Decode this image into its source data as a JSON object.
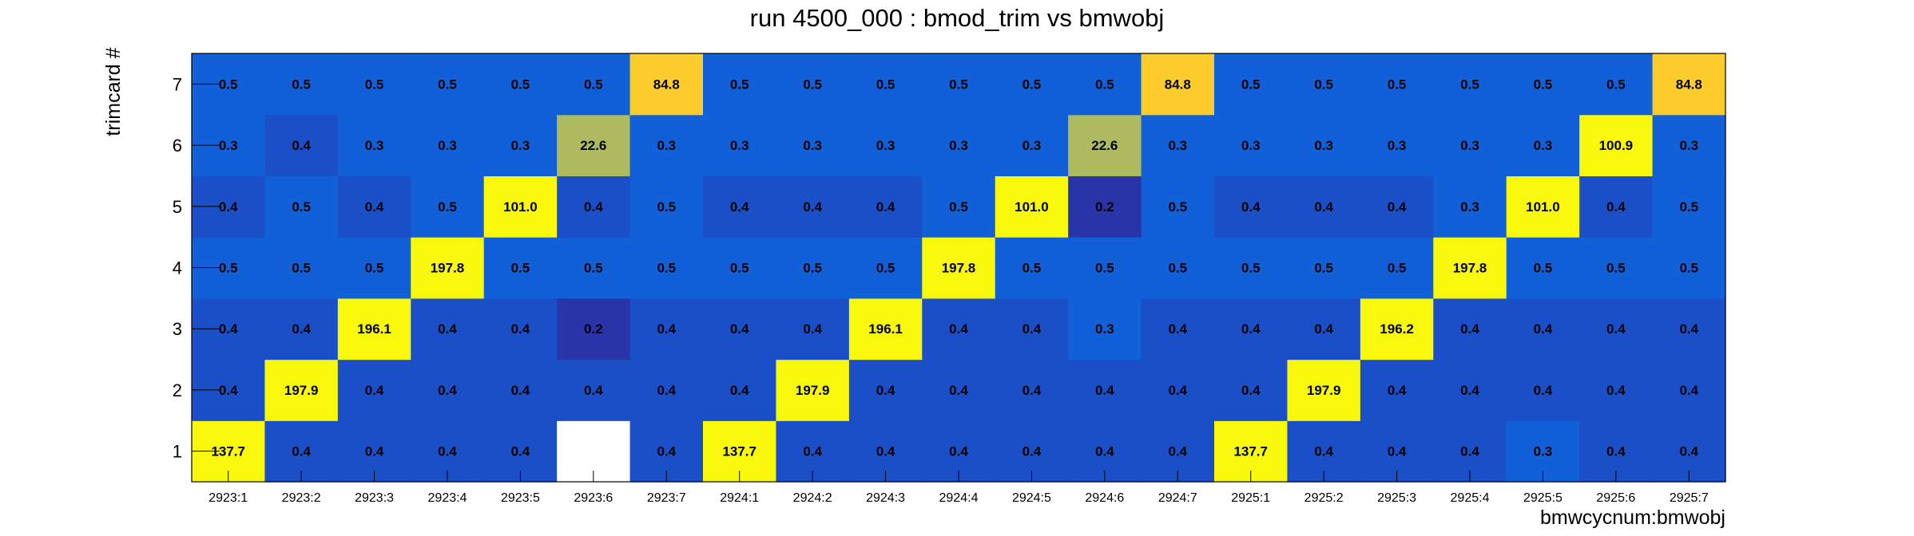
{
  "chart_data": {
    "type": "heatmap",
    "title": "run 4500_000 : bmod_trim vs bmwobj",
    "xlabel": "bmwcycnum:bmwobj",
    "ylabel": "trimcard #",
    "x_categories": [
      "2923:1",
      "2923:2",
      "2923:3",
      "2923:4",
      "2923:5",
      "2923:6",
      "2923:7",
      "2924:1",
      "2924:2",
      "2924:3",
      "2924:4",
      "2924:5",
      "2924:6",
      "2924:7",
      "2925:1",
      "2925:2",
      "2925:3",
      "2925:4",
      "2925:5",
      "2925:6",
      "2925:7"
    ],
    "y_categories": [
      "1",
      "2",
      "3",
      "4",
      "5",
      "6",
      "7"
    ],
    "values": [
      [
        137.7,
        0.4,
        0.4,
        0.4,
        0.4,
        null,
        0.4,
        137.7,
        0.4,
        0.4,
        0.4,
        0.4,
        0.4,
        0.4,
        137.7,
        0.4,
        0.4,
        0.4,
        0.3,
        0.4,
        0.4
      ],
      [
        0.4,
        197.9,
        0.4,
        0.4,
        0.4,
        0.4,
        0.4,
        0.4,
        197.9,
        0.4,
        0.4,
        0.4,
        0.4,
        0.4,
        0.4,
        197.9,
        0.4,
        0.4,
        0.4,
        0.4,
        0.4
      ],
      [
        0.4,
        0.4,
        196.1,
        0.4,
        0.4,
        0.2,
        0.4,
        0.4,
        0.4,
        196.1,
        0.4,
        0.4,
        0.3,
        0.4,
        0.4,
        0.4,
        196.2,
        0.4,
        0.4,
        0.4,
        0.4
      ],
      [
        0.5,
        0.5,
        0.5,
        197.8,
        0.5,
        0.5,
        0.5,
        0.5,
        0.5,
        0.5,
        197.8,
        0.5,
        0.5,
        0.5,
        0.5,
        0.5,
        0.5,
        197.8,
        0.5,
        0.5,
        0.5
      ],
      [
        0.4,
        0.5,
        0.4,
        0.5,
        101.0,
        0.4,
        0.5,
        0.4,
        0.4,
        0.4,
        0.5,
        101.0,
        0.2,
        0.5,
        0.4,
        0.4,
        0.4,
        0.3,
        101.0,
        0.4,
        0.5
      ],
      [
        0.3,
        0.4,
        0.3,
        0.3,
        0.3,
        22.6,
        0.3,
        0.3,
        0.3,
        0.3,
        0.3,
        0.3,
        22.6,
        0.3,
        0.3,
        0.3,
        0.3,
        0.3,
        0.3,
        100.9,
        0.3
      ],
      [
        0.5,
        0.5,
        0.5,
        0.5,
        0.5,
        0.5,
        84.8,
        0.5,
        0.5,
        0.5,
        0.5,
        0.5,
        0.5,
        84.8,
        0.5,
        0.5,
        0.5,
        0.5,
        0.5,
        0.5,
        84.8
      ]
    ],
    "cell_colors": {
      "high": "#f8f80c",
      "mid_high": "#fbcc2a",
      "mid": "#adbb5e",
      "low_a": "#1160d8",
      "low_b": "#1a4fc8",
      "lowest": "#2834a8",
      "empty": "#ffffff"
    },
    "grid": false,
    "legend": "none"
  }
}
